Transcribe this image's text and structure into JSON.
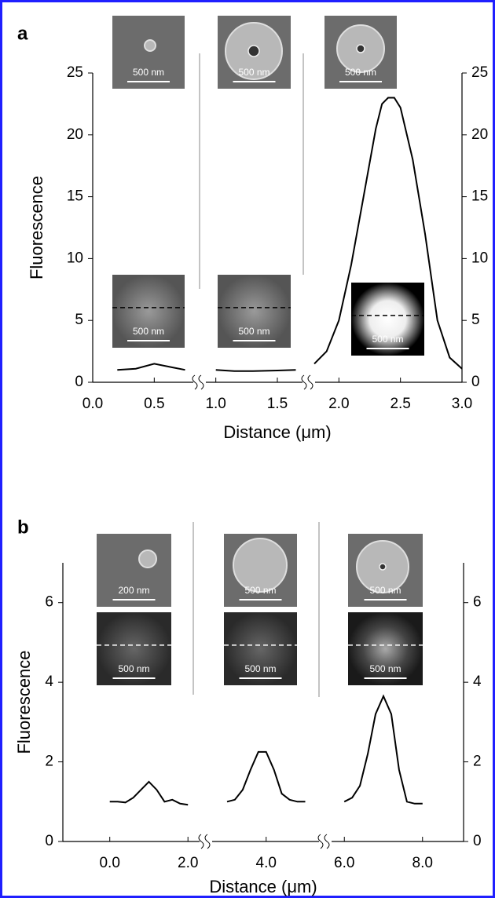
{
  "chart_data": [
    {
      "type": "line",
      "panel_label": "a",
      "x_label": "Distance (μm)",
      "y_label": "Fluorescence",
      "xlim": [
        0,
        3
      ],
      "ylim": [
        0,
        25
      ],
      "xticks": [
        {
          "value": 0,
          "label": "0.0"
        },
        {
          "value": 0.5,
          "label": "0.5"
        },
        {
          "value": 1,
          "label": "1.0"
        },
        {
          "value": 1.5,
          "label": "1.5"
        },
        {
          "value": 2,
          "label": "2.0"
        },
        {
          "value": 2.5,
          "label": "2.5"
        },
        {
          "value": 3,
          "label": "3.0"
        }
      ],
      "yticks": [
        0,
        5,
        10,
        15,
        20,
        25
      ],
      "series": [
        {
          "color": "#000000",
          "x": [
            0.2,
            0.35,
            0.5,
            0.65,
            0.75
          ],
          "values": [
            1.0,
            1.1,
            1.5,
            1.2,
            1.0
          ]
        },
        {
          "color": "#000000",
          "x": [
            1.0,
            1.15,
            1.3,
            1.5,
            1.65
          ],
          "values": [
            1.0,
            0.9,
            0.9,
            0.95,
            1.0
          ]
        },
        {
          "color": "#000000",
          "x": [
            1.8,
            1.9,
            2.0,
            2.1,
            2.2,
            2.3,
            2.35,
            2.4,
            2.45,
            2.5,
            2.6,
            2.7,
            2.8,
            2.9,
            3.0
          ],
          "values": [
            1.5,
            2.5,
            5,
            9.5,
            15,
            20.5,
            22.5,
            23,
            23,
            22.2,
            18,
            12,
            5,
            2,
            1.1
          ]
        }
      ],
      "insets": [
        {
          "scale_label": "500 nm"
        },
        {
          "scale_label": "500 nm"
        },
        {
          "scale_label": "500 nm"
        },
        {
          "scale_label": "500 nm"
        },
        {
          "scale_label": "500 nm"
        },
        {
          "scale_label": "500 nm"
        }
      ]
    },
    {
      "type": "line",
      "panel_label": "b",
      "x_label": "Distance (μm)",
      "y_label": "Fluorescence",
      "xlim": [
        -1.2,
        9.05
      ],
      "ylim": [
        0,
        7
      ],
      "xticks": [
        {
          "value": 0,
          "label": "0.0"
        },
        {
          "value": 2,
          "label": "2.0"
        },
        {
          "value": 4,
          "label": "4.0"
        },
        {
          "value": 6,
          "label": "6.0"
        },
        {
          "value": 8,
          "label": "8.0"
        }
      ],
      "yticks": [
        0,
        2,
        4,
        6
      ],
      "series": [
        {
          "color": "#000000",
          "x": [
            0,
            0.2,
            0.4,
            0.6,
            0.8,
            1.0,
            1.2,
            1.4,
            1.6,
            1.8,
            2.0
          ],
          "values": [
            1.0,
            1.0,
            0.98,
            1.1,
            1.3,
            1.5,
            1.3,
            1.0,
            1.05,
            0.95,
            0.92
          ]
        },
        {
          "color": "#000000",
          "x": [
            3.0,
            3.2,
            3.4,
            3.6,
            3.8,
            4.0,
            4.2,
            4.4,
            4.6,
            4.8,
            5.0
          ],
          "values": [
            1.0,
            1.05,
            1.3,
            1.8,
            2.25,
            2.25,
            1.8,
            1.2,
            1.05,
            1.0,
            1.0
          ]
        },
        {
          "color": "#000000",
          "x": [
            6.0,
            6.2,
            6.4,
            6.6,
            6.8,
            7.0,
            7.2,
            7.4,
            7.6,
            7.8,
            8.0
          ],
          "values": [
            1.0,
            1.1,
            1.4,
            2.2,
            3.2,
            3.65,
            3.2,
            1.8,
            1.0,
            0.95,
            0.95
          ]
        }
      ],
      "insets": [
        {
          "scale_label": "200 nm"
        },
        {
          "scale_label": "500 nm"
        },
        {
          "scale_label": "500 nm"
        },
        {
          "scale_label": "500 nm"
        },
        {
          "scale_label": "500 nm"
        },
        {
          "scale_label": "500 nm"
        }
      ]
    }
  ]
}
